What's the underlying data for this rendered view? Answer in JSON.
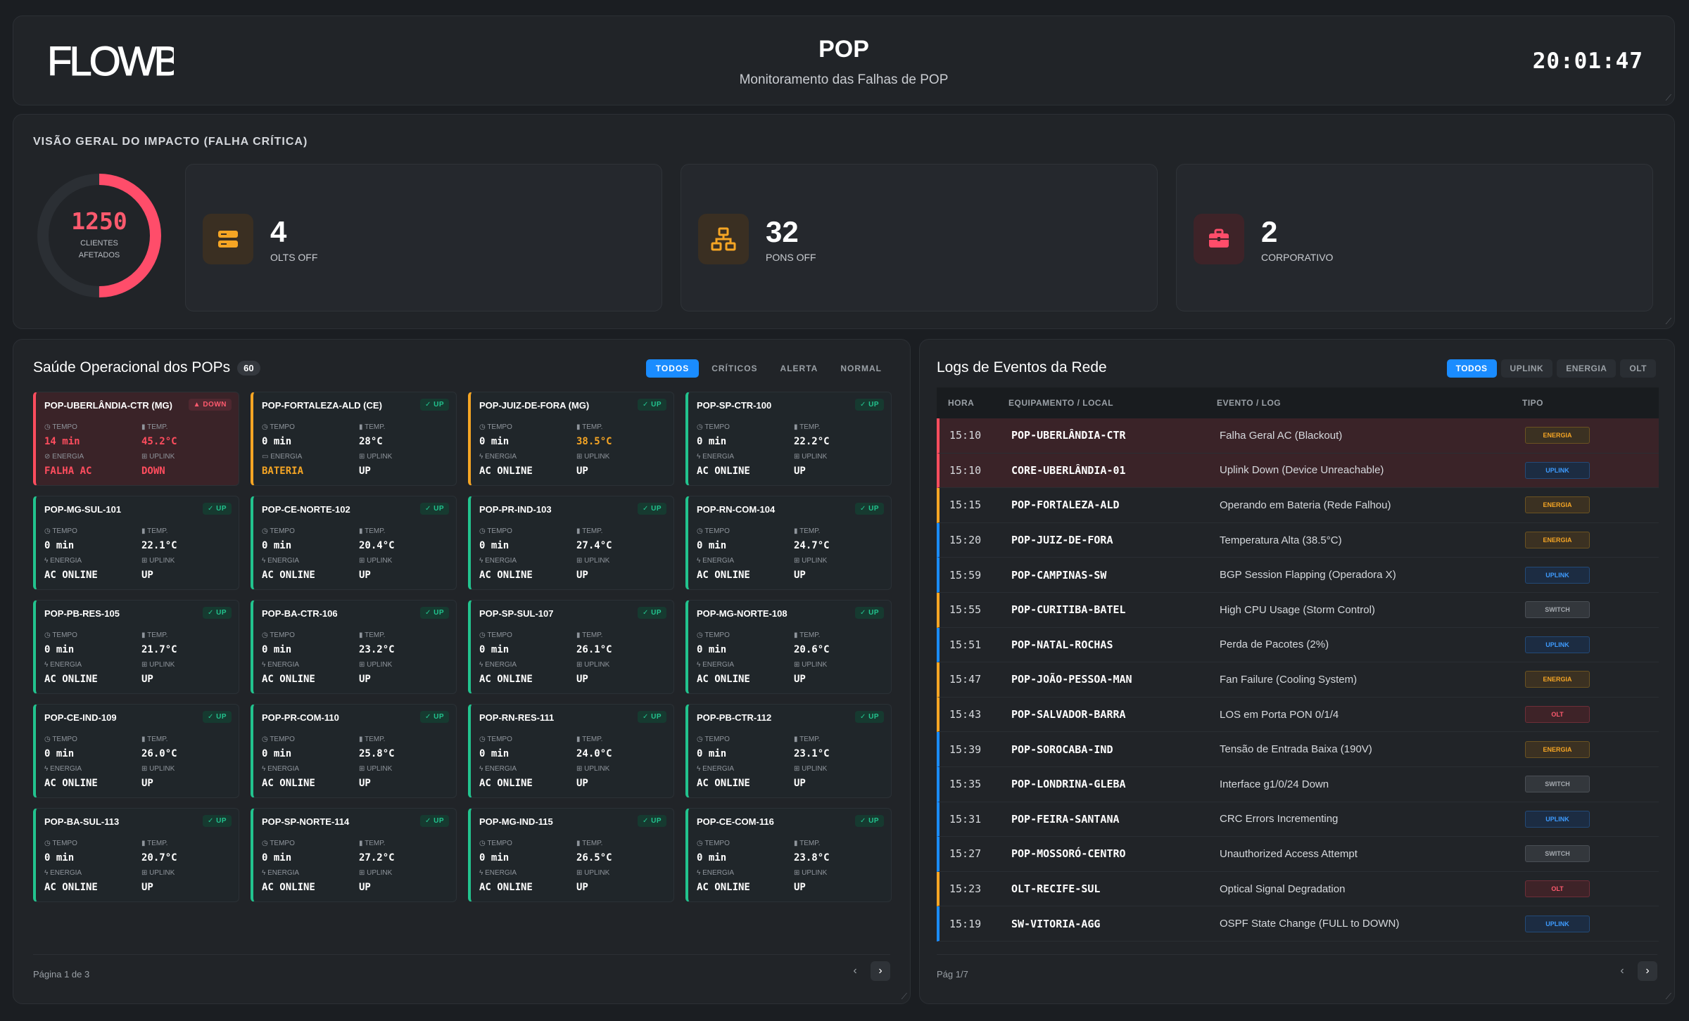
{
  "header": {
    "logo_text": "FLOWBIX",
    "title": "POP",
    "subtitle": "Monitoramento das Falhas de POP",
    "clock": "20:01:47"
  },
  "overview": {
    "title": "VISÃO GERAL DO IMPACTO (FALHA CRÍTICA)",
    "donut": {
      "value": "1250",
      "label_line1": "CLIENTES",
      "label_line2": "AFETADOS",
      "fill_fraction": 0.5,
      "color": "#ff4d6a"
    },
    "stats": [
      {
        "value": "4",
        "label": "OLTS OFF",
        "icon": "server-icon",
        "color": "#f5a524"
      },
      {
        "value": "32",
        "label": "PONS OFF",
        "icon": "network-icon",
        "color": "#f5a524"
      },
      {
        "value": "2",
        "label": "CORPORATIVO",
        "icon": "briefcase-icon",
        "color": "#ff4d6a"
      }
    ]
  },
  "pops": {
    "title": "Saúde Operacional dos POPs",
    "count": "60",
    "filters": [
      "TODOS",
      "CRÍTICOS",
      "ALERTA",
      "NORMAL"
    ],
    "active_filter": "TODOS",
    "labels": {
      "tempo": "TEMPO",
      "temp": "TEMP.",
      "energia": "ENERGIA",
      "uplink": "UPLINK"
    },
    "cards": [
      {
        "name": "POP-UBERLÂNDIA-CTR (MG)",
        "status": "DOWN",
        "tempo": "14 min",
        "temp": "45.2°C",
        "energia": "FALHA AC",
        "uplink": "DOWN",
        "level": "down"
      },
      {
        "name": "POP-FORTALEZA-ALD (CE)",
        "status": "UP",
        "tempo": "0 min",
        "temp": "28°C",
        "energia": "BATERIA",
        "uplink": "UP",
        "level": "warn"
      },
      {
        "name": "POP-JUIZ-DE-FORA (MG)",
        "status": "UP",
        "tempo": "0 min",
        "temp": "38.5°C",
        "energia": "AC ONLINE",
        "uplink": "UP",
        "level": "warn"
      },
      {
        "name": "POP-SP-CTR-100",
        "status": "UP",
        "tempo": "0 min",
        "temp": "22.2°C",
        "energia": "AC ONLINE",
        "uplink": "UP",
        "level": "ok"
      },
      {
        "name": "POP-MG-SUL-101",
        "status": "UP",
        "tempo": "0 min",
        "temp": "22.1°C",
        "energia": "AC ONLINE",
        "uplink": "UP",
        "level": "ok"
      },
      {
        "name": "POP-CE-NORTE-102",
        "status": "UP",
        "tempo": "0 min",
        "temp": "20.4°C",
        "energia": "AC ONLINE",
        "uplink": "UP",
        "level": "ok"
      },
      {
        "name": "POP-PR-IND-103",
        "status": "UP",
        "tempo": "0 min",
        "temp": "27.4°C",
        "energia": "AC ONLINE",
        "uplink": "UP",
        "level": "ok"
      },
      {
        "name": "POP-RN-COM-104",
        "status": "UP",
        "tempo": "0 min",
        "temp": "24.7°C",
        "energia": "AC ONLINE",
        "uplink": "UP",
        "level": "ok"
      },
      {
        "name": "POP-PB-RES-105",
        "status": "UP",
        "tempo": "0 min",
        "temp": "21.7°C",
        "energia": "AC ONLINE",
        "uplink": "UP",
        "level": "ok"
      },
      {
        "name": "POP-BA-CTR-106",
        "status": "UP",
        "tempo": "0 min",
        "temp": "23.2°C",
        "energia": "AC ONLINE",
        "uplink": "UP",
        "level": "ok"
      },
      {
        "name": "POP-SP-SUL-107",
        "status": "UP",
        "tempo": "0 min",
        "temp": "26.1°C",
        "energia": "AC ONLINE",
        "uplink": "UP",
        "level": "ok"
      },
      {
        "name": "POP-MG-NORTE-108",
        "status": "UP",
        "tempo": "0 min",
        "temp": "20.6°C",
        "energia": "AC ONLINE",
        "uplink": "UP",
        "level": "ok"
      },
      {
        "name": "POP-CE-IND-109",
        "status": "UP",
        "tempo": "0 min",
        "temp": "26.0°C",
        "energia": "AC ONLINE",
        "uplink": "UP",
        "level": "ok"
      },
      {
        "name": "POP-PR-COM-110",
        "status": "UP",
        "tempo": "0 min",
        "temp": "25.8°C",
        "energia": "AC ONLINE",
        "uplink": "UP",
        "level": "ok"
      },
      {
        "name": "POP-RN-RES-111",
        "status": "UP",
        "tempo": "0 min",
        "temp": "24.0°C",
        "energia": "AC ONLINE",
        "uplink": "UP",
        "level": "ok"
      },
      {
        "name": "POP-PB-CTR-112",
        "status": "UP",
        "tempo": "0 min",
        "temp": "23.1°C",
        "energia": "AC ONLINE",
        "uplink": "UP",
        "level": "ok"
      },
      {
        "name": "POP-BA-SUL-113",
        "status": "UP",
        "tempo": "0 min",
        "temp": "20.7°C",
        "energia": "AC ONLINE",
        "uplink": "UP",
        "level": "ok"
      },
      {
        "name": "POP-SP-NORTE-114",
        "status": "UP",
        "tempo": "0 min",
        "temp": "27.2°C",
        "energia": "AC ONLINE",
        "uplink": "UP",
        "level": "ok"
      },
      {
        "name": "POP-MG-IND-115",
        "status": "UP",
        "tempo": "0 min",
        "temp": "26.5°C",
        "energia": "AC ONLINE",
        "uplink": "UP",
        "level": "ok"
      },
      {
        "name": "POP-CE-COM-116",
        "status": "UP",
        "tempo": "0 min",
        "temp": "23.8°C",
        "energia": "AC ONLINE",
        "uplink": "UP",
        "level": "ok"
      }
    ],
    "page_label": "Página 1 de 3"
  },
  "logs": {
    "title": "Logs de Eventos da Rede",
    "filters": [
      "TODOS",
      "UPLINK",
      "ENERGIA",
      "OLT"
    ],
    "active_filter": "TODOS",
    "columns": [
      "HORA",
      "EQUIPAMENTO / LOCAL",
      "EVENTO / LOG",
      "TIPO"
    ],
    "rows": [
      {
        "hora": "15:10",
        "equip": "POP-UBERLÂNDIA-CTR",
        "evento": "Falha Geral AC (Blackout)",
        "tipo": "ENERGIA",
        "level": "crit"
      },
      {
        "hora": "15:10",
        "equip": "CORE-UBERLÂNDIA-01",
        "evento": "Uplink Down (Device Unreachable)",
        "tipo": "UPLINK",
        "level": "crit"
      },
      {
        "hora": "15:15",
        "equip": "POP-FORTALEZA-ALD",
        "evento": "Operando em Bateria (Rede Falhou)",
        "tipo": "ENERGIA",
        "level": "warn"
      },
      {
        "hora": "15:20",
        "equip": "POP-JUIZ-DE-FORA",
        "evento": "Temperatura Alta (38.5°C)",
        "tipo": "ENERGIA",
        "level": "info"
      },
      {
        "hora": "15:59",
        "equip": "POP-CAMPINAS-SW",
        "evento": "BGP Session Flapping (Operadora X)",
        "tipo": "UPLINK",
        "level": "info"
      },
      {
        "hora": "15:55",
        "equip": "POP-CURITIBA-BATEL",
        "evento": "High CPU Usage (Storm Control)",
        "tipo": "SWITCH",
        "level": "warn"
      },
      {
        "hora": "15:51",
        "equip": "POP-NATAL-ROCHAS",
        "evento": "Perda de Pacotes (2%)",
        "tipo": "UPLINK",
        "level": "info"
      },
      {
        "hora": "15:47",
        "equip": "POP-JOÃO-PESSOA-MAN",
        "evento": "Fan Failure (Cooling System)",
        "tipo": "ENERGIA",
        "level": "warn"
      },
      {
        "hora": "15:43",
        "equip": "POP-SALVADOR-BARRA",
        "evento": "LOS em Porta PON 0/1/4",
        "tipo": "OLT",
        "level": "warn"
      },
      {
        "hora": "15:39",
        "equip": "POP-SOROCABA-IND",
        "evento": "Tensão de Entrada Baixa (190V)",
        "tipo": "ENERGIA",
        "level": "info"
      },
      {
        "hora": "15:35",
        "equip": "POP-LONDRINA-GLEBA",
        "evento": "Interface g1/0/24 Down",
        "tipo": "SWITCH",
        "level": "info"
      },
      {
        "hora": "15:31",
        "equip": "POP-FEIRA-SANTANA",
        "evento": "CRC Errors Incrementing",
        "tipo": "UPLINK",
        "level": "info"
      },
      {
        "hora": "15:27",
        "equip": "POP-MOSSORÓ-CENTRO",
        "evento": "Unauthorized Access Attempt",
        "tipo": "SWITCH",
        "level": "info"
      },
      {
        "hora": "15:23",
        "equip": "OLT-RECIFE-SUL",
        "evento": "Optical Signal Degradation",
        "tipo": "OLT",
        "level": "warn"
      },
      {
        "hora": "15:19",
        "equip": "SW-VITORIA-AGG",
        "evento": "OSPF State Change (FULL to DOWN)",
        "tipo": "UPLINK",
        "level": "info"
      }
    ],
    "page_label": "Pág 1/7"
  }
}
